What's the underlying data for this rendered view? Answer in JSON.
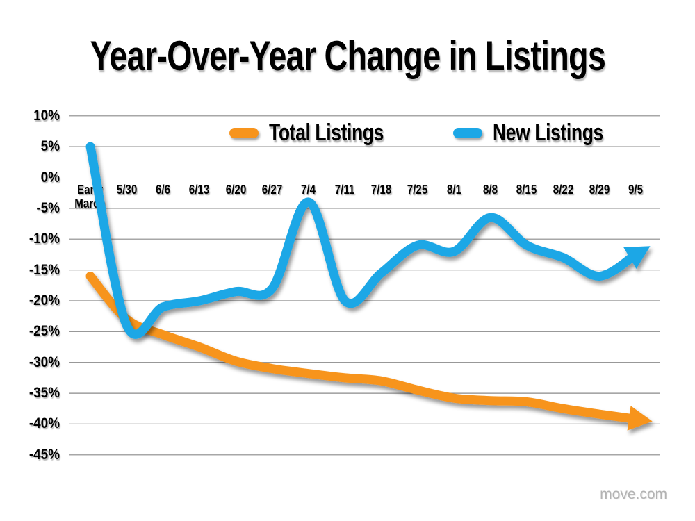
{
  "title": "Year-Over-Year Change in Listings",
  "watermark": "move.com",
  "chart_data": {
    "type": "line",
    "title": "Year-Over-Year Change in Listings",
    "categories": [
      "Early\nMarch",
      "5/30",
      "6/6",
      "6/13",
      "6/20",
      "6/27",
      "7/4",
      "7/11",
      "7/18",
      "7/25",
      "8/1",
      "8/8",
      "8/15",
      "8/22",
      "8/29",
      "9/5"
    ],
    "series": [
      {
        "name": "Total Listings",
        "color": "#F7941D",
        "style": "thick-smooth-arrow",
        "values": [
          -16,
          -23,
          -25.5,
          -27.5,
          -29.8,
          -31,
          -31.8,
          -32.5,
          -33,
          -34.5,
          -35.8,
          -36.2,
          -36.4,
          -37.5,
          -38.4,
          -39.2
        ]
      },
      {
        "name": "New Listings",
        "color": "#1CA7E6",
        "style": "thick-smooth-arrow",
        "values": [
          5,
          -24,
          -21,
          -20,
          -18.5,
          -18,
          -4,
          -20,
          -15.5,
          -11,
          -12,
          -6.5,
          -11,
          -13,
          -16,
          -12.5
        ]
      }
    ],
    "ylabel": "",
    "ylim": [
      -45,
      10
    ],
    "yticks": [
      10,
      5,
      0,
      -5,
      -10,
      -15,
      -20,
      -25,
      -30,
      -35,
      -40,
      -45
    ],
    "ytick_suffix": "%",
    "zero_gridline_hidden": true,
    "grid": "horizontal",
    "gridline_color": "#8a8a8a",
    "dashed_underlay_color": "#4a4a4a",
    "legend_position": "top-center"
  }
}
